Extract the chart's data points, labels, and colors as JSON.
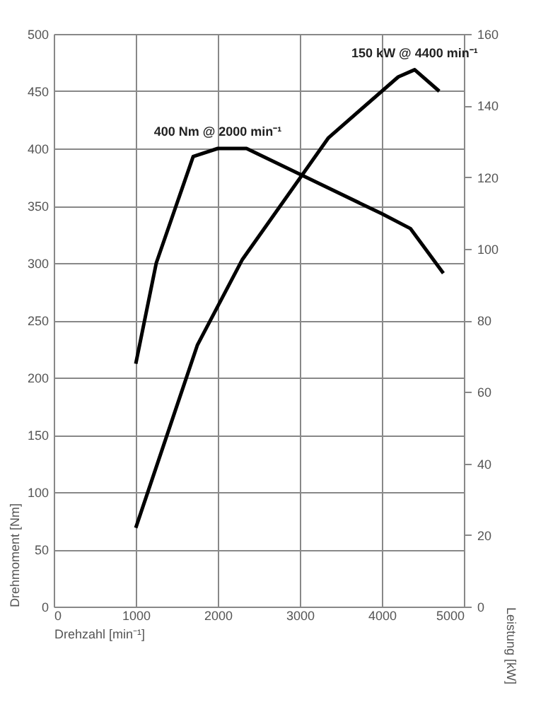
{
  "chart_data": {
    "type": "line",
    "xlabel": "Drehzahl [min⁻¹]",
    "ylabel": "Drehmoment [Nm]",
    "y2label": "Leistung [kW]",
    "xlim": [
      0,
      5000
    ],
    "xticks": [
      0,
      1000,
      2000,
      3000,
      4000,
      5000
    ],
    "ylim": [
      0,
      500
    ],
    "yticks": [
      0,
      50,
      100,
      150,
      200,
      250,
      300,
      350,
      400,
      450,
      500
    ],
    "y2lim": [
      0,
      160
    ],
    "y2ticks": [
      0,
      20,
      40,
      60,
      80,
      100,
      120,
      140,
      160
    ],
    "grid": true,
    "marker": "none",
    "line_style": "solid",
    "series": [
      {
        "color": "#000000",
        "x": [
          1000,
          1250,
          1700,
          2000,
          2350,
          4000,
          4350,
          4750
        ],
        "values": [
          212,
          300,
          393,
          400,
          400,
          343,
          330,
          291
        ]
      },
      {
        "color": "#000000",
        "axis": "y2",
        "x": [
          1000,
          1750,
          2300,
          3350,
          4200,
          4400,
          4700
        ],
        "values": [
          22,
          73,
          97,
          131,
          148,
          150,
          144
        ]
      }
    ],
    "annotations": [
      {
        "text": "400 Nm @ 2000 min⁻¹",
        "x": 2000,
        "y": 400
      },
      "150 kW @ 4400 min⁻¹"
    ]
  }
}
